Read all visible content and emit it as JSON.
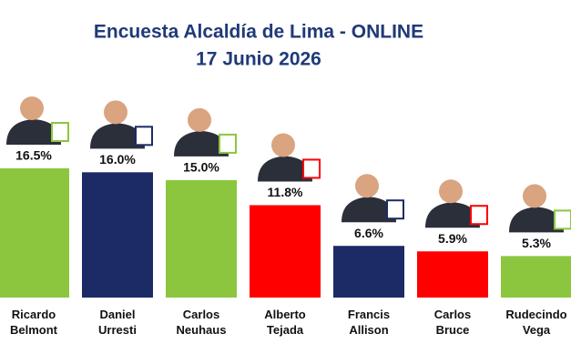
{
  "chart_data": {
    "type": "bar",
    "title": "Encuesta Alcaldía de Lima - ONLINE",
    "subtitle": "17 Junio 2026",
    "categories": [
      "Ricardo Belmont",
      "Daniel Urresti",
      "Carlos Neuhaus",
      "Alberto Tejada",
      "Francis Allison",
      "Carlos Bruce",
      "Rudecindo Vega"
    ],
    "values": [
      16.5,
      16.0,
      15.0,
      11.8,
      6.6,
      5.9,
      5.3
    ],
    "value_labels": [
      "16.5%",
      "16.0%",
      "15.0%",
      "11.8%",
      "6.6%",
      "5.9%",
      "5.3%"
    ],
    "colors": [
      "#8cc63f",
      "#1c2a66",
      "#8cc63f",
      "#ff0000",
      "#1c2a66",
      "#ff0000",
      "#8cc63f"
    ],
    "ylim": [
      0,
      38
    ]
  }
}
